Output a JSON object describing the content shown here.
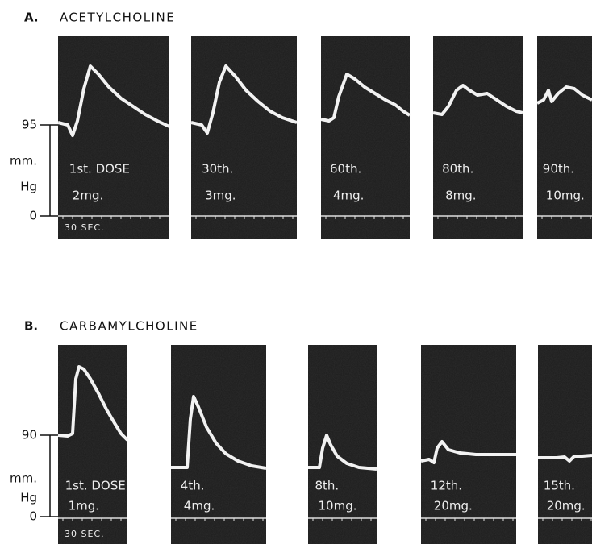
{
  "figure_a": {
    "letter": "A.",
    "title": "ACETYLCHOLINE",
    "axis": {
      "top": "95",
      "unit_1": "mm.",
      "unit_2": "Hg",
      "bottom": "0"
    },
    "time_scale": "30 SEC.",
    "panels": [
      {
        "dose": "1st. DOSE",
        "amount": "2mg."
      },
      {
        "dose": "30th.",
        "amount": "3mg."
      },
      {
        "dose": "60th.",
        "amount": "4mg."
      },
      {
        "dose": "80th.",
        "amount": "8mg."
      },
      {
        "dose": "90th.",
        "amount": "10mg."
      }
    ]
  },
  "figure_b": {
    "letter": "B.",
    "title": "CARBAMYLCHOLINE",
    "axis": {
      "top": "90",
      "unit_1": "mm.",
      "unit_2": "Hg",
      "bottom": "0"
    },
    "time_scale": "30 SEC.",
    "panels": [
      {
        "dose": "1st. DOSE",
        "amount": "1mg."
      },
      {
        "dose": "4th.",
        "amount": "4mg."
      },
      {
        "dose": "8th.",
        "amount": "10mg."
      },
      {
        "dose": "12th.",
        "amount": "20mg."
      },
      {
        "dose": "15th.",
        "amount": "20mg."
      }
    ]
  }
}
